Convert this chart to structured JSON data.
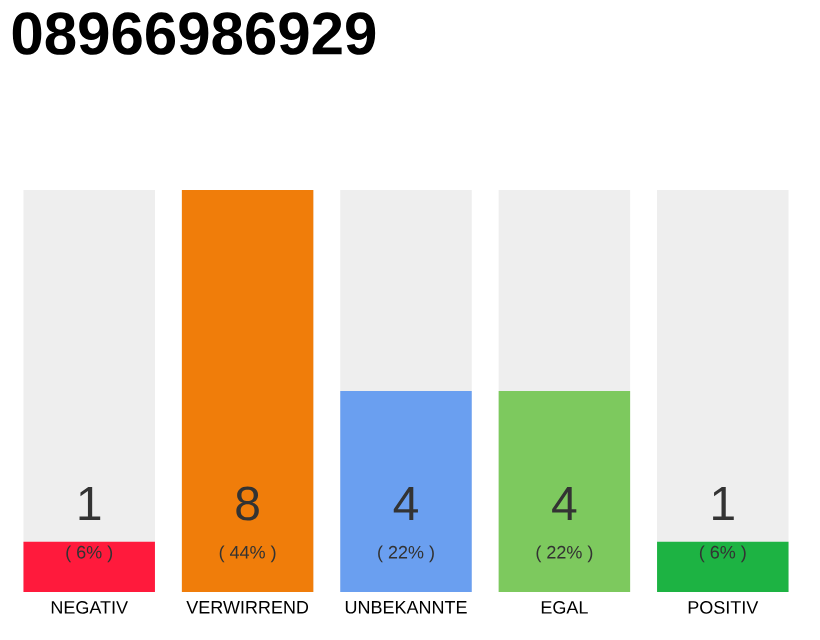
{
  "chart_data": {
    "type": "bar",
    "title": "08966986929",
    "categories": [
      "NEGATIV",
      "VERWIRREND",
      "UNBEKANNTE",
      "EGAL",
      "POSITIV"
    ],
    "values": [
      1,
      8,
      4,
      4,
      1
    ],
    "colors": [
      "#ff1a3c",
      "#f07d0a",
      "#6a9ff0",
      "#7dc95e",
      "#1db343"
    ],
    "value_labels": [
      "1",
      "8",
      "4",
      "4",
      "1"
    ],
    "annotations": [
      "( 6% )",
      "( 44% )",
      "( 22% )",
      "( 22% )",
      "( 6% )"
    ]
  }
}
